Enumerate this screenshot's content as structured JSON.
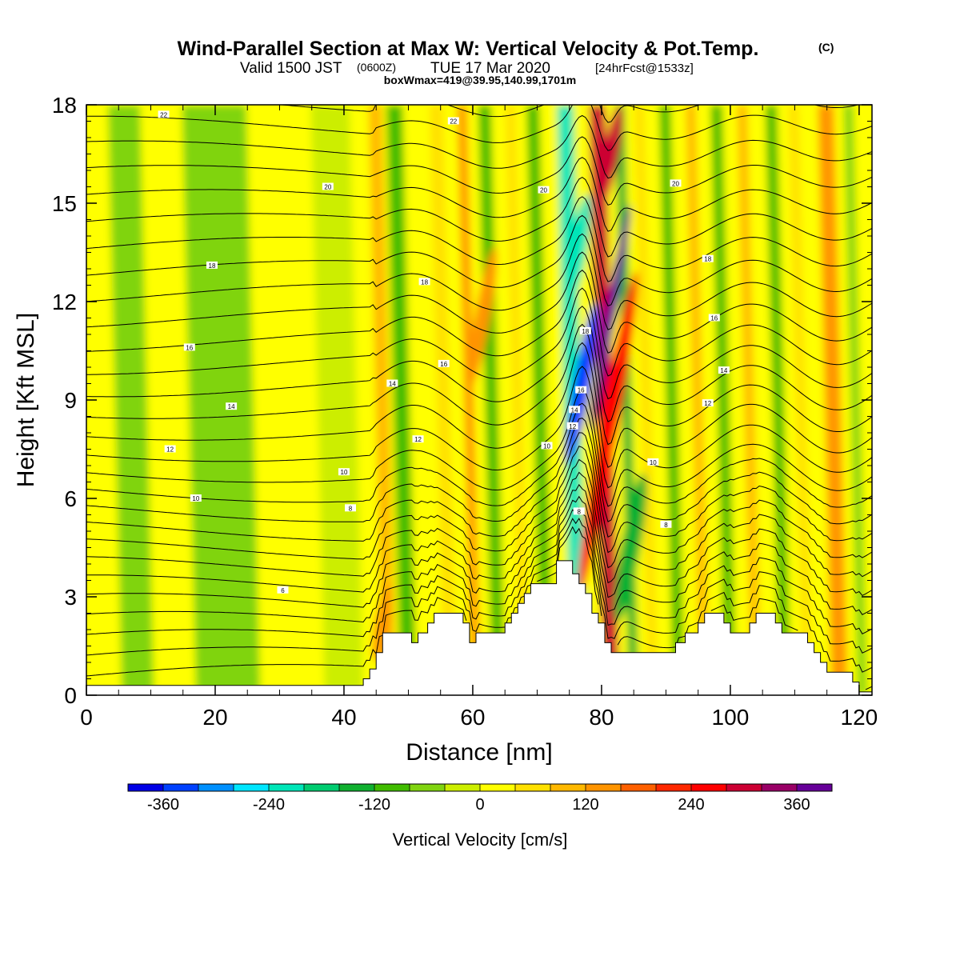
{
  "chart_data": {
    "type": "heatmap",
    "title": "Wind-Parallel Section at Max W: Vertical Velocity & Pot.Temp.",
    "title_mark": "(C)",
    "subtitle": {
      "valid": "Valid 1500 JST",
      "zulu": "(0600Z)",
      "date": "TUE 17 Mar 2020",
      "forecast": "[24hrFcst@1533z]",
      "box": "boxWmax=419@39.95,140.99,1701m"
    },
    "xlabel": "Distance [nm]",
    "ylabel": "Height [Kft MSL]",
    "xlim": [
      0,
      122
    ],
    "ylim": [
      0,
      18
    ],
    "x_ticks": [
      0,
      20,
      40,
      60,
      80,
      100,
      120
    ],
    "y_ticks": [
      0,
      3,
      6,
      9,
      12,
      15,
      18
    ],
    "colorbar": {
      "label": "Vertical Velocity [cm/s]",
      "tick_values": [
        -360,
        -240,
        -120,
        0,
        120,
        240,
        360
      ],
      "tick_labels": [
        "-360",
        "-240",
        "-120",
        "0",
        "120",
        "240",
        "360"
      ],
      "min": -400,
      "step": 40,
      "colors": [
        "#0000e6",
        "#0040ff",
        "#0090ff",
        "#00e6ff",
        "#00e6b8",
        "#00cc70",
        "#10b030",
        "#40bc00",
        "#80d410",
        "#ccee00",
        "#ffff00",
        "#ffe000",
        "#ffb800",
        "#ff9400",
        "#ff6000",
        "#ff2800",
        "#ff0000",
        "#cc0033",
        "#990066",
        "#660099"
      ]
    },
    "velocity_bands": [
      {
        "x": 8,
        "w": 5,
        "value": -60
      },
      {
        "x": 22,
        "w": 10,
        "value": -50
      },
      {
        "x": 40,
        "w": 6,
        "value": -30
      },
      {
        "x": 47,
        "w": 2,
        "value": 100
      },
      {
        "x": 50,
        "w": 2.5,
        "value": -90
      },
      {
        "x": 56.5,
        "w": 2,
        "value": 60
      },
      {
        "x": 60.5,
        "w": 1.5,
        "value": 140
      },
      {
        "x": 64,
        "w": 2,
        "value": -100
      },
      {
        "x": 68,
        "w": 1.5,
        "value": 40
      },
      {
        "x": 71.5,
        "w": 2,
        "value": -110
      },
      {
        "x": 76.5,
        "w": 2.5,
        "value": -230
      },
      {
        "x": 81.5,
        "w": 2.5,
        "value": 300
      },
      {
        "x": 85,
        "w": 1.5,
        "value": -130
      },
      {
        "x": 88,
        "w": 1.5,
        "value": 60
      },
      {
        "x": 92,
        "w": 1.8,
        "value": -110
      },
      {
        "x": 96,
        "w": 1.5,
        "value": 90
      },
      {
        "x": 100,
        "w": 1.8,
        "value": -100
      },
      {
        "x": 104,
        "w": 1.5,
        "value": 80
      },
      {
        "x": 108.5,
        "w": 1.8,
        "value": -100
      },
      {
        "x": 112,
        "w": 1.5,
        "value": 60
      },
      {
        "x": 117,
        "w": 2.5,
        "value": 150
      },
      {
        "x": 120.5,
        "w": 1.5,
        "value": -70
      }
    ],
    "velocity_blobs": [
      {
        "x": 77,
        "z": 9.5,
        "rx": 1.3,
        "rz": 2.5,
        "value": -360
      },
      {
        "x": 81.3,
        "z": 11.5,
        "rx": 0.8,
        "rz": 3.5,
        "value": 400
      },
      {
        "x": 81,
        "z": 8,
        "rx": 1.4,
        "rz": 5,
        "value": 260
      },
      {
        "x": 76.3,
        "z": 13.5,
        "rx": 1.3,
        "rz": 1.8,
        "value": -240
      },
      {
        "x": 81.5,
        "z": 16.5,
        "rx": 1.2,
        "rz": 1.5,
        "value": 300
      },
      {
        "x": 46,
        "z": 2.2,
        "rx": 1.2,
        "rz": 1.2,
        "value": 130
      },
      {
        "x": 61.5,
        "z": 11.5,
        "rx": 1.2,
        "rz": 2.2,
        "value": 150
      },
      {
        "x": 84.5,
        "z": 4.5,
        "rx": 1.5,
        "rz": 2.3,
        "value": -160
      }
    ],
    "terrain": [
      {
        "x": 0,
        "z": 0.3
      },
      {
        "x": 43,
        "z": 0.3
      },
      {
        "x": 43,
        "z": 0.5
      },
      {
        "x": 44,
        "z": 0.5
      },
      {
        "x": 44,
        "z": 0.8
      },
      {
        "x": 45,
        "z": 0.8
      },
      {
        "x": 45,
        "z": 1.3
      },
      {
        "x": 46,
        "z": 1.3
      },
      {
        "x": 46,
        "z": 1.9
      },
      {
        "x": 50.5,
        "z": 1.9
      },
      {
        "x": 50.5,
        "z": 1.6
      },
      {
        "x": 51.5,
        "z": 1.6
      },
      {
        "x": 51.5,
        "z": 1.9
      },
      {
        "x": 53,
        "z": 1.9
      },
      {
        "x": 53,
        "z": 2.2
      },
      {
        "x": 54,
        "z": 2.2
      },
      {
        "x": 54,
        "z": 2.5
      },
      {
        "x": 58.5,
        "z": 2.5
      },
      {
        "x": 58.5,
        "z": 2.2
      },
      {
        "x": 59.5,
        "z": 2.2
      },
      {
        "x": 59.5,
        "z": 1.6
      },
      {
        "x": 60.5,
        "z": 1.6
      },
      {
        "x": 60.5,
        "z": 1.9
      },
      {
        "x": 65,
        "z": 1.9
      },
      {
        "x": 65,
        "z": 2.2
      },
      {
        "x": 66,
        "z": 2.2
      },
      {
        "x": 66,
        "z": 2.5
      },
      {
        "x": 67,
        "z": 2.5
      },
      {
        "x": 67,
        "z": 2.8
      },
      {
        "x": 68,
        "z": 2.8
      },
      {
        "x": 68,
        "z": 3.1
      },
      {
        "x": 69,
        "z": 3.1
      },
      {
        "x": 69,
        "z": 3.4
      },
      {
        "x": 73,
        "z": 3.4
      },
      {
        "x": 73,
        "z": 4.1
      },
      {
        "x": 75.5,
        "z": 4.1
      },
      {
        "x": 75.5,
        "z": 3.7
      },
      {
        "x": 76.5,
        "z": 3.7
      },
      {
        "x": 76.5,
        "z": 3.4
      },
      {
        "x": 77.5,
        "z": 3.4
      },
      {
        "x": 77.5,
        "z": 3.1
      },
      {
        "x": 78.5,
        "z": 3.1
      },
      {
        "x": 78.5,
        "z": 2.5
      },
      {
        "x": 79.5,
        "z": 2.5
      },
      {
        "x": 79.5,
        "z": 2.2
      },
      {
        "x": 80.5,
        "z": 2.2
      },
      {
        "x": 80.5,
        "z": 1.6
      },
      {
        "x": 81.5,
        "z": 1.6
      },
      {
        "x": 81.5,
        "z": 1.3
      },
      {
        "x": 91.5,
        "z": 1.3
      },
      {
        "x": 91.5,
        "z": 1.6
      },
      {
        "x": 93,
        "z": 1.6
      },
      {
        "x": 93,
        "z": 1.9
      },
      {
        "x": 95,
        "z": 1.9
      },
      {
        "x": 95,
        "z": 2.2
      },
      {
        "x": 96,
        "z": 2.2
      },
      {
        "x": 96,
        "z": 2.5
      },
      {
        "x": 99,
        "z": 2.5
      },
      {
        "x": 99,
        "z": 2.2
      },
      {
        "x": 100,
        "z": 2.2
      },
      {
        "x": 100,
        "z": 1.9
      },
      {
        "x": 103,
        "z": 1.9
      },
      {
        "x": 103,
        "z": 2.2
      },
      {
        "x": 104,
        "z": 2.2
      },
      {
        "x": 104,
        "z": 2.5
      },
      {
        "x": 107,
        "z": 2.5
      },
      {
        "x": 107,
        "z": 2.2
      },
      {
        "x": 108,
        "z": 2.2
      },
      {
        "x": 108,
        "z": 1.9
      },
      {
        "x": 112,
        "z": 1.9
      },
      {
        "x": 112,
        "z": 1.6
      },
      {
        "x": 113,
        "z": 1.6
      },
      {
        "x": 113,
        "z": 1.3
      },
      {
        "x": 114,
        "z": 1.3
      },
      {
        "x": 114,
        "z": 1.0
      },
      {
        "x": 115,
        "z": 1.0
      },
      {
        "x": 115,
        "z": 0.7
      },
      {
        "x": 119,
        "z": 0.7
      },
      {
        "x": 119,
        "z": 0.4
      },
      {
        "x": 120,
        "z": 0.4
      },
      {
        "x": 120,
        "z": 0.1
      },
      {
        "x": 122,
        "z": 0.1
      }
    ],
    "isentrope_count": 28,
    "isentrope_labels": [
      {
        "x": 12,
        "z": 17.7,
        "text": "22"
      },
      {
        "x": 57,
        "z": 17.5,
        "text": "22"
      },
      {
        "x": 37.5,
        "z": 15.5,
        "text": "20"
      },
      {
        "x": 71,
        "z": 15.4,
        "text": "20"
      },
      {
        "x": 91.5,
        "z": 15.6,
        "text": "20"
      },
      {
        "x": 19.5,
        "z": 13.1,
        "text": "18"
      },
      {
        "x": 52.5,
        "z": 12.6,
        "text": "18"
      },
      {
        "x": 96.5,
        "z": 13.3,
        "text": "18"
      },
      {
        "x": 16,
        "z": 10.6,
        "text": "16"
      },
      {
        "x": 55.5,
        "z": 10.1,
        "text": "16"
      },
      {
        "x": 97.5,
        "z": 11.5,
        "text": "16"
      },
      {
        "x": 22.5,
        "z": 8.8,
        "text": "14"
      },
      {
        "x": 47.5,
        "z": 9.5,
        "text": "14"
      },
      {
        "x": 99,
        "z": 9.9,
        "text": "14"
      },
      {
        "x": 13,
        "z": 7.5,
        "text": "12"
      },
      {
        "x": 51.5,
        "z": 7.8,
        "text": "12"
      },
      {
        "x": 96.5,
        "z": 8.9,
        "text": "12"
      },
      {
        "x": 40,
        "z": 6.8,
        "text": "10"
      },
      {
        "x": 71.5,
        "z": 7.6,
        "text": "10"
      },
      {
        "x": 88,
        "z": 7.1,
        "text": "10"
      },
      {
        "x": 17,
        "z": 6.0,
        "text": "10"
      },
      {
        "x": 41,
        "z": 5.7,
        "text": "8"
      },
      {
        "x": 90,
        "z": 5.2,
        "text": "8"
      },
      {
        "x": 76.5,
        "z": 5.6,
        "text": "8"
      },
      {
        "x": 30.5,
        "z": 3.2,
        "text": "6"
      },
      {
        "x": 77.5,
        "z": 11.1,
        "text": "18"
      },
      {
        "x": 76.8,
        "z": 9.3,
        "text": "16"
      },
      {
        "x": 75.8,
        "z": 8.7,
        "text": "14"
      },
      {
        "x": 75.5,
        "z": 8.2,
        "text": "12"
      }
    ]
  }
}
